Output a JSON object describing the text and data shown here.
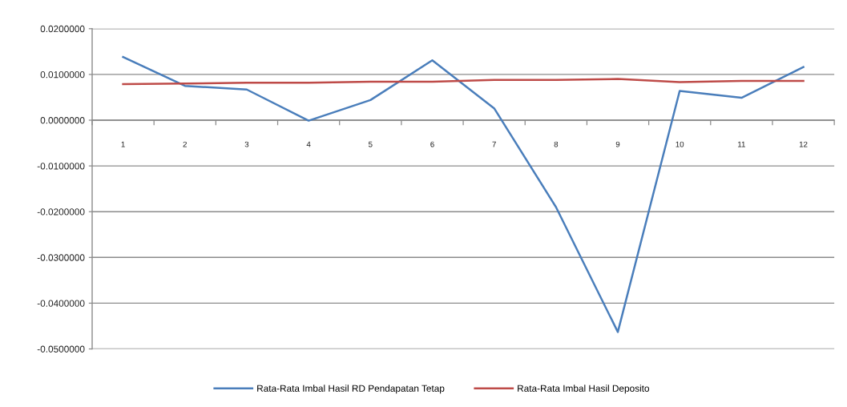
{
  "chart_data": {
    "type": "line",
    "categories": [
      "1",
      "2",
      "3",
      "4",
      "5",
      "6",
      "7",
      "8",
      "9",
      "10",
      "11",
      "12"
    ],
    "series": [
      {
        "name": "Rata-Rata Imbal Hasil RD Pendapatan Tetap",
        "color": "#4a7ebb",
        "values": [
          0.0138,
          0.0075,
          0.0067,
          -0.0001,
          0.0044,
          0.0131,
          0.0026,
          -0.019,
          -0.0463,
          0.0064,
          0.0049,
          0.0116
        ]
      },
      {
        "name": "Rata-Rata Imbal Hasil Deposito",
        "color": "#be4b48",
        "values": [
          0.0079,
          0.008,
          0.0082,
          0.0082,
          0.0084,
          0.0084,
          0.0088,
          0.0088,
          0.009,
          0.0083,
          0.0086,
          0.0086
        ]
      }
    ],
    "ylim": [
      -0.05,
      0.02
    ],
    "yticks": [
      {
        "value": -0.05,
        "label": "-0.0500000"
      },
      {
        "value": -0.04,
        "label": "-0.0400000"
      },
      {
        "value": -0.03,
        "label": "-0.0300000"
      },
      {
        "value": -0.02,
        "label": "-0.0200000"
      },
      {
        "value": -0.01,
        "label": "-0.0100000"
      },
      {
        "value": 0,
        "label": "0.0000000"
      },
      {
        "value": 0.01,
        "label": "0.0100000"
      },
      {
        "value": 0.02,
        "label": "0.0200000"
      }
    ],
    "grid": "y",
    "legend": "bottom",
    "line_style": "solid"
  }
}
